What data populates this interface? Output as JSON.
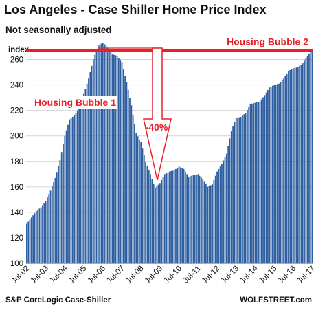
{
  "chart_data": {
    "type": "bar",
    "title": "Los Angeles - Case Shiller Home Price Index",
    "subtitle": "Not seasonally adjusted",
    "ylabel": "index",
    "ylim": [
      100,
      270
    ],
    "yticks": [
      100,
      120,
      140,
      160,
      180,
      200,
      220,
      240,
      260
    ],
    "grid": true,
    "x_tick_labels": [
      "Jul-02",
      "Jul-03",
      "Jul-04",
      "Jul-05",
      "Jul-06",
      "Jul-07",
      "Jul-08",
      "Jul-09",
      "Jul-10",
      "Jul-11",
      "Jul-12",
      "Jul-13",
      "Jul-14",
      "Jul-15",
      "Jul-16",
      "Jul-17"
    ],
    "keyframes": [
      [
        "2002-07",
        131
      ],
      [
        "2002-10",
        136
      ],
      [
        "2003-01",
        141
      ],
      [
        "2003-04",
        144
      ],
      [
        "2003-07",
        149
      ],
      [
        "2003-10",
        157
      ],
      [
        "2004-01",
        167
      ],
      [
        "2004-04",
        181
      ],
      [
        "2004-07",
        200
      ],
      [
        "2004-10",
        213
      ],
      [
        "2005-01",
        216
      ],
      [
        "2005-04",
        222
      ],
      [
        "2005-07",
        233
      ],
      [
        "2005-10",
        245
      ],
      [
        "2006-01",
        260
      ],
      [
        "2006-04",
        271
      ],
      [
        "2006-07",
        273
      ],
      [
        "2006-09",
        271
      ],
      [
        "2007-01",
        264
      ],
      [
        "2007-04",
        263
      ],
      [
        "2007-07",
        258
      ],
      [
        "2007-10",
        242
      ],
      [
        "2008-01",
        224
      ],
      [
        "2008-04",
        202
      ],
      [
        "2008-07",
        195
      ],
      [
        "2008-10",
        180
      ],
      [
        "2009-01",
        170
      ],
      [
        "2009-04",
        159
      ],
      [
        "2009-07",
        163
      ],
      [
        "2009-10",
        170
      ],
      [
        "2010-01",
        172
      ],
      [
        "2010-04",
        173
      ],
      [
        "2010-07",
        176
      ],
      [
        "2010-10",
        174
      ],
      [
        "2011-01",
        168
      ],
      [
        "2011-04",
        169
      ],
      [
        "2011-07",
        170
      ],
      [
        "2011-10",
        166
      ],
      [
        "2012-01",
        160
      ],
      [
        "2012-04",
        162
      ],
      [
        "2012-07",
        172
      ],
      [
        "2012-10",
        178
      ],
      [
        "2013-01",
        186
      ],
      [
        "2013-04",
        204
      ],
      [
        "2013-07",
        214
      ],
      [
        "2013-10",
        215
      ],
      [
        "2014-01",
        218
      ],
      [
        "2014-04",
        225
      ],
      [
        "2014-07",
        226
      ],
      [
        "2014-10",
        227
      ],
      [
        "2015-01",
        232
      ],
      [
        "2015-04",
        238
      ],
      [
        "2015-07",
        240
      ],
      [
        "2015-10",
        241
      ],
      [
        "2016-01",
        245
      ],
      [
        "2016-04",
        251
      ],
      [
        "2016-07",
        253
      ],
      [
        "2016-10",
        254
      ],
      [
        "2017-01",
        257
      ],
      [
        "2017-04",
        263
      ],
      [
        "2017-07",
        268
      ]
    ],
    "series": [
      {
        "color": "#2e5fa1"
      }
    ],
    "annotations": {
      "bubble2_line_value": 267,
      "bubble1_label": "Housing Bubble 1",
      "bubble2_label": "Housing Bubble 2",
      "drop_label": "-40%",
      "line_color": "#e8202a"
    }
  },
  "footer": {
    "source": "S&P CoreLogic Case-Shiller",
    "site": "WOLFSTREET.com"
  }
}
